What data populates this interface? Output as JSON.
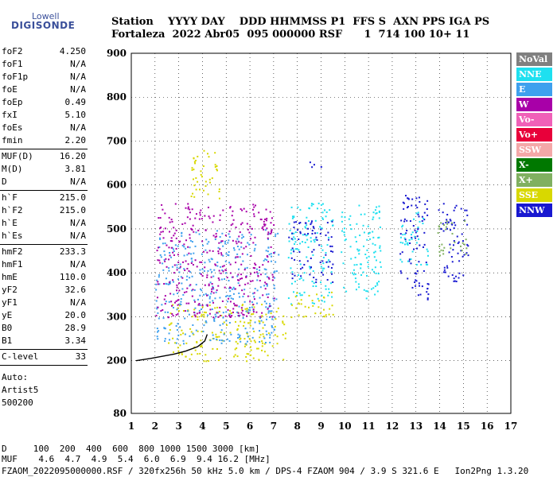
{
  "logo": {
    "top": "Lowell",
    "main": "DIGISONDE"
  },
  "header": {
    "line1": "Station    YYYY DAY    DDD HHMMSS P1  FFS S  AXN PPS IGA PS",
    "line2": "Fortaleza  2022 Abr05  095 000000 RSF      1  714 100 10+ 11"
  },
  "params1": [
    {
      "k": "foF2",
      "v": "4.250"
    },
    {
      "k": "foF1",
      "v": "N/A"
    },
    {
      "k": "foF1p",
      "v": "N/A"
    },
    {
      "k": "foE",
      "v": "N/A"
    },
    {
      "k": "foEp",
      "v": "0.49"
    },
    {
      "k": "fxI",
      "v": "5.10"
    },
    {
      "k": "foEs",
      "v": "N/A"
    },
    {
      "k": "fmin",
      "v": "2.20"
    }
  ],
  "params2": [
    {
      "k": "MUF(D)",
      "v": "16.20"
    },
    {
      "k": "M(D)",
      "v": "3.81"
    },
    {
      "k": "D",
      "v": "N/A"
    }
  ],
  "params3": [
    {
      "k": "h`F",
      "v": "215.0"
    },
    {
      "k": "h`F2",
      "v": "215.0"
    },
    {
      "k": "h`E",
      "v": "N/A"
    },
    {
      "k": "h`Es",
      "v": "N/A"
    }
  ],
  "params4": [
    {
      "k": "hmF2",
      "v": "233.3"
    },
    {
      "k": "hmF1",
      "v": "N/A"
    },
    {
      "k": "hmE",
      "v": "110.0"
    },
    {
      "k": "yF2",
      "v": "32.6"
    },
    {
      "k": "yF1",
      "v": "N/A"
    },
    {
      "k": "yE",
      "v": "20.0"
    },
    {
      "k": "B0",
      "v": "28.9"
    },
    {
      "k": "B1",
      "v": "3.34"
    }
  ],
  "clevel": {
    "k": "C-level",
    "v": "33"
  },
  "notes": [
    "Auto:",
    "Artist5",
    "500200"
  ],
  "legend": [
    {
      "label": "NoVal",
      "color": "#808080"
    },
    {
      "label": "NNE",
      "color": "#1ee0f0"
    },
    {
      "label": "E",
      "color": "#3ea0ee"
    },
    {
      "label": "W",
      "color": "#a800a8"
    },
    {
      "label": "Vo-",
      "color": "#f060b8"
    },
    {
      "label": "Vo+",
      "color": "#e8003a"
    },
    {
      "label": "SSW",
      "color": "#f4a8a8"
    },
    {
      "label": "X-",
      "color": "#007800"
    },
    {
      "label": "X+",
      "color": "#80b060"
    },
    {
      "label": "SSE",
      "color": "#d8d800"
    },
    {
      "label": "NNW",
      "color": "#1818d0"
    }
  ],
  "footer": {
    "d_row": "D     100  200  400  600  800 1000 1500 3000 [km]",
    "muf_row": "MUF    4.6  4.7  4.9  5.4  6.0  6.9  9.4 16.2 [MHz]",
    "file_row": "FZAOM_2022095000000.RSF / 320fx256h 50 kHz 5.0 km / DPS-4 FZAOM 904 / 3.9 S 321.6 E   Ion2Png 1.3.20"
  },
  "chart_data": {
    "type": "scatter",
    "xlabel": "",
    "ylabel": "",
    "xlim": [
      1,
      17
    ],
    "ylim": [
      80,
      900
    ],
    "x_ticks": [
      1,
      2,
      3,
      4,
      5,
      6,
      7,
      8,
      9,
      10,
      11,
      12,
      13,
      14,
      15,
      16,
      17
    ],
    "y_ticks": [
      80,
      200,
      300,
      400,
      500,
      600,
      700,
      800,
      900
    ],
    "grid": true,
    "trace": [
      {
        "x": 1.2,
        "y": 200
      },
      {
        "x": 1.8,
        "y": 205
      },
      {
        "x": 2.3,
        "y": 210
      },
      {
        "x": 2.8,
        "y": 215
      },
      {
        "x": 3.3,
        "y": 222
      },
      {
        "x": 3.8,
        "y": 232
      },
      {
        "x": 4.1,
        "y": 245
      },
      {
        "x": 4.2,
        "y": 260
      }
    ],
    "clusters": [
      {
        "series": "SSE",
        "x": [
          2.5,
          7.5
        ],
        "y": [
          200,
          330
        ]
      },
      {
        "series": "E",
        "x": [
          2.0,
          7.2
        ],
        "y": [
          240,
          500
        ]
      },
      {
        "series": "W",
        "x": [
          2.0,
          7.0
        ],
        "y": [
          300,
          560
        ]
      },
      {
        "series": "SSE",
        "x": [
          3.5,
          4.7
        ],
        "y": [
          560,
          680
        ]
      },
      {
        "series": "NNE",
        "x": [
          7.6,
          9.5
        ],
        "y": [
          330,
          560
        ]
      },
      {
        "series": "SSE",
        "x": [
          7.6,
          9.5
        ],
        "y": [
          300,
          360
        ]
      },
      {
        "series": "NNW",
        "x": [
          7.6,
          9.5
        ],
        "y": [
          380,
          520
        ]
      },
      {
        "series": "NNE",
        "x": [
          9.8,
          11.5
        ],
        "y": [
          340,
          560
        ]
      },
      {
        "series": "NNW",
        "x": [
          12.3,
          13.5
        ],
        "y": [
          340,
          580
        ]
      },
      {
        "series": "NNE",
        "x": [
          12.3,
          13.5
        ],
        "y": [
          420,
          540
        ]
      },
      {
        "series": "NNW",
        "x": [
          13.9,
          15.2
        ],
        "y": [
          380,
          560
        ]
      },
      {
        "series": "X+",
        "x": [
          13.9,
          15.2
        ],
        "y": [
          440,
          520
        ]
      },
      {
        "series": "NNW",
        "x": [
          8.0,
          9.0
        ],
        "y": [
          640,
          655
        ]
      }
    ]
  }
}
